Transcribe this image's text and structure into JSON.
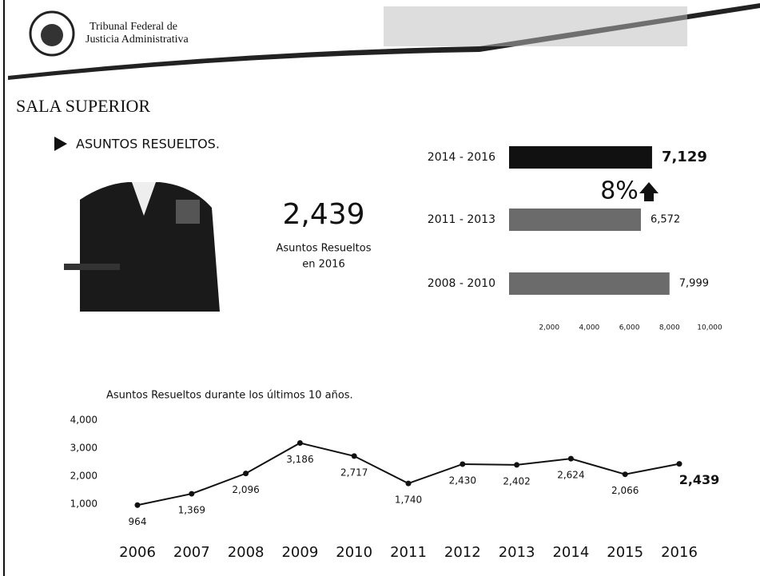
{
  "header": {
    "title_lines": [
      "Tribunal Federal de",
      "Justicia Administrativa"
    ]
  },
  "section": {
    "title": "SALA SUPERIOR",
    "subtitle": "ASUNTOS RESUELTOS."
  },
  "highlight": {
    "value": "2,439",
    "caption_lines": [
      "Asuntos Resueltos",
      "en 2016"
    ]
  },
  "chart_data": [
    {
      "type": "barh",
      "categories": [
        "2014 - 2016",
        "2011 - 2013",
        "2008 - 2010"
      ],
      "values": [
        7129,
        6572,
        7999
      ],
      "value_labels": [
        "7,129",
        "6,572",
        "7,999"
      ],
      "colors": [
        "#111111",
        "#6b6b6b",
        "#6b6b6b"
      ],
      "xlim": [
        0,
        10000
      ],
      "xticks": [
        {
          "value": 2000,
          "label": "2,000"
        },
        {
          "value": 4000,
          "label": "4,000"
        },
        {
          "value": 6000,
          "label": "6,000"
        },
        {
          "value": 8000,
          "label": "8,000"
        },
        {
          "value": 10000,
          "label": "10,000"
        }
      ],
      "annotation": "8%"
    },
    {
      "type": "line",
      "title": "Asuntos Resueltos durante los últimos 10 años.",
      "categories": [
        "2006",
        "2007",
        "2008",
        "2009",
        "2010",
        "2011",
        "2012",
        "2013",
        "2014",
        "2015",
        "2016"
      ],
      "values": [
        964,
        1369,
        2096,
        3186,
        2717,
        1740,
        2430,
        2402,
        2624,
        2066,
        2439
      ],
      "value_labels": [
        "964",
        "1,369",
        "2,096",
        "3,186",
        "2,717",
        "1,740",
        "2,430",
        "2,402",
        "2,624",
        "2,066",
        "2,439"
      ],
      "color": "#111111",
      "ylim": [
        0,
        4000
      ],
      "yticks": [
        {
          "value": 1000,
          "label": "1,000"
        },
        {
          "value": 2000,
          "label": "2,000"
        },
        {
          "value": 3000,
          "label": "3,000"
        },
        {
          "value": 4000,
          "label": "4,000"
        }
      ]
    }
  ]
}
